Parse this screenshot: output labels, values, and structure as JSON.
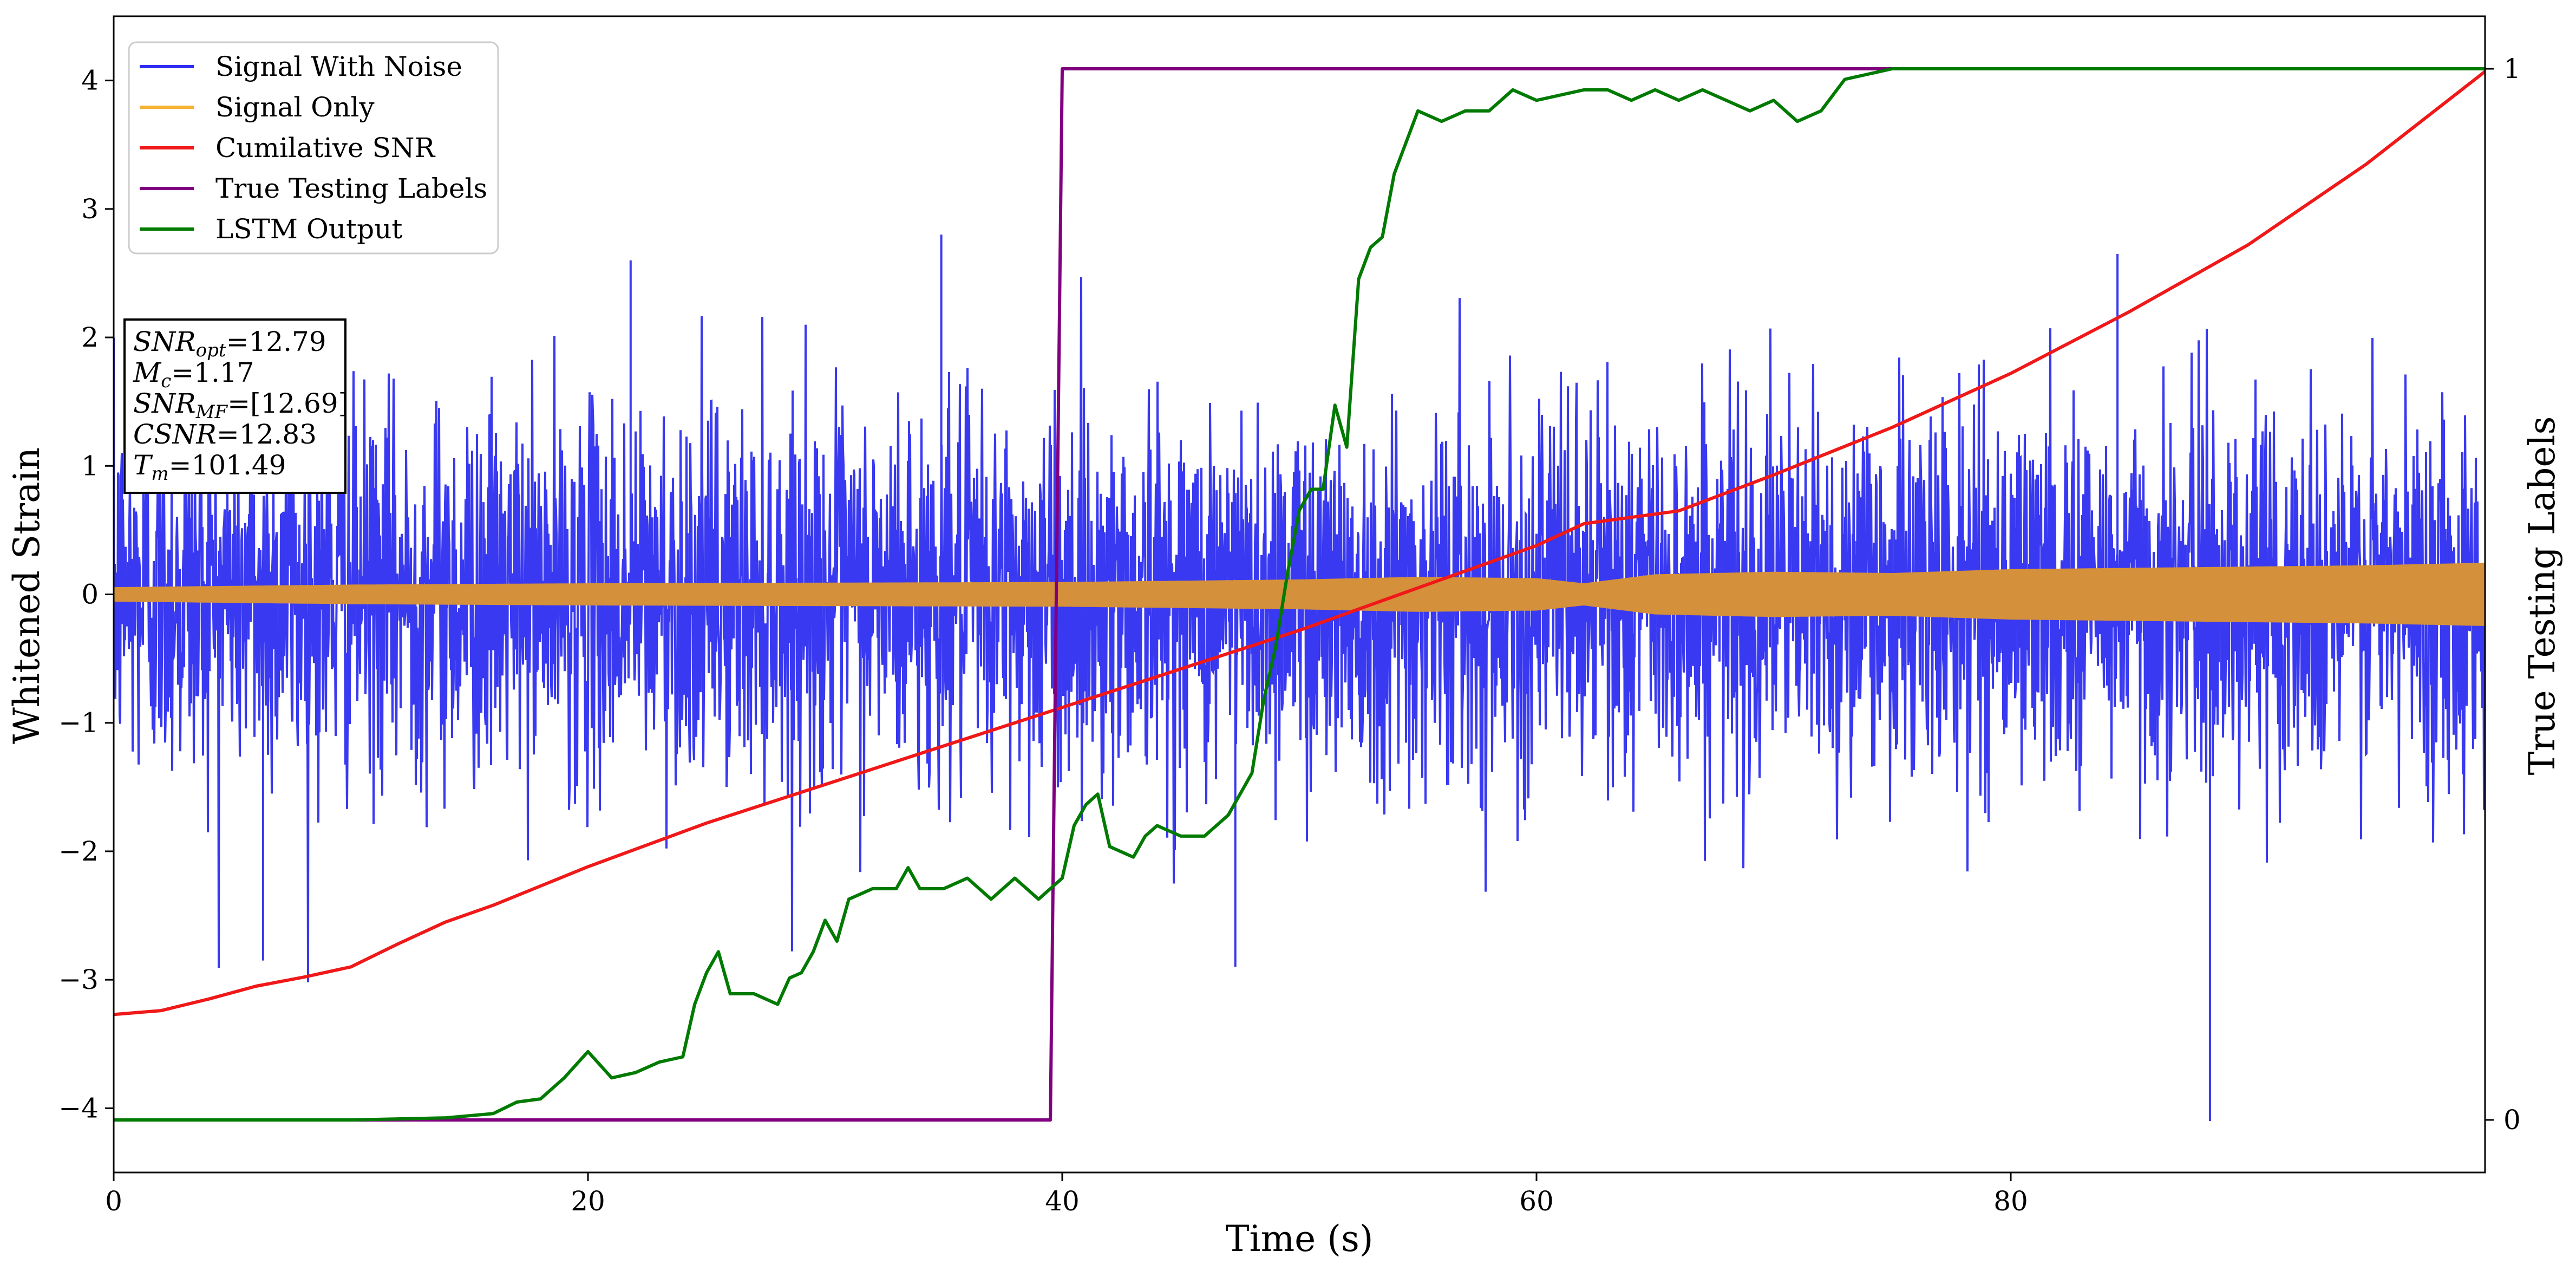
{
  "chart_data": {
    "type": "line",
    "title": "",
    "xlabel": "Time (s)",
    "ylabel": "Whitened Strain",
    "ylabel_right": "True Testing Labels",
    "xlim": [
      0,
      100
    ],
    "ylim": [
      -4.5,
      4.5
    ],
    "ylim_right": [
      -0.05,
      1.05
    ],
    "x_ticks": [
      0,
      20,
      40,
      60,
      80
    ],
    "x_tick_labels": [
      "0",
      "20",
      "40",
      "60",
      "80"
    ],
    "y_ticks": [
      -4,
      -3,
      -2,
      -1,
      0,
      1,
      2,
      3,
      4
    ],
    "y_tick_labels": [
      "−4",
      "−3",
      "−2",
      "−1",
      "0",
      "1",
      "2",
      "3",
      "4"
    ],
    "y_right_ticks": [
      0,
      1
    ],
    "y_right_tick_labels": [
      "0",
      "1"
    ],
    "grid": false,
    "legend_position": "top-left",
    "legend": [
      {
        "label": "Signal With Noise",
        "color": "#2e2ef0"
      },
      {
        "label": "Signal Only",
        "color": "#f5b233"
      },
      {
        "label": "Cumilative SNR",
        "color": "#f01818"
      },
      {
        "label": "True Testing Labels",
        "color": "#800080"
      },
      {
        "label": "LSTM Output",
        "color": "#007a00"
      }
    ],
    "info_box": [
      {
        "main": "SNR",
        "sub": "opt",
        "value": "=12.79"
      },
      {
        "main": "M",
        "sub": "c",
        "value": "=1.17"
      },
      {
        "main": "SNR",
        "sub": "MF",
        "value": "=[12.69]"
      },
      {
        "main": "CSNR",
        "sub": "",
        "value": "=12.83"
      },
      {
        "main": "T",
        "sub": "m",
        "value": "=101.49"
      }
    ],
    "series": [
      {
        "name": "Signal With Noise",
        "axis": "left",
        "color": "#2e2ef0",
        "kind": "noise_band",
        "x": [
          0,
          100
        ],
        "mean": 0.0,
        "std": 0.72,
        "notable_extremes": [
          {
            "x": 88.4,
            "y": -4.1
          },
          {
            "x": 34.9,
            "y": 2.8
          },
          {
            "x": 21.8,
            "y": 2.6
          },
          {
            "x": 84.5,
            "y": 2.65
          },
          {
            "x": 6.3,
            "y": -2.85
          },
          {
            "x": 47.3,
            "y": -2.9
          }
        ]
      },
      {
        "name": "Signal Only",
        "axis": "left",
        "color": "#d4903a",
        "kind": "envelope",
        "x": [
          0,
          10,
          20,
          30,
          40,
          50,
          55,
          60,
          62,
          65,
          70,
          75,
          80,
          85,
          90,
          95,
          100
        ],
        "amplitude": [
          0.05,
          0.07,
          0.08,
          0.085,
          0.09,
          0.11,
          0.13,
          0.12,
          0.08,
          0.15,
          0.17,
          0.16,
          0.19,
          0.2,
          0.21,
          0.22,
          0.24
        ]
      },
      {
        "name": "Cumilative SNR",
        "axis": "left",
        "color": "#f01818",
        "x": [
          0,
          2,
          4,
          6,
          8,
          10,
          12,
          14,
          16,
          20,
          25,
          30,
          35,
          40,
          45,
          50,
          55,
          60,
          62,
          64,
          66,
          70,
          75,
          80,
          85,
          90,
          95,
          100
        ],
        "y": [
          -3.27,
          -3.24,
          -3.15,
          -3.05,
          -2.98,
          -2.9,
          -2.72,
          -2.55,
          -2.42,
          -2.12,
          -1.78,
          -1.48,
          -1.18,
          -0.88,
          -0.58,
          -0.28,
          0.05,
          0.38,
          0.55,
          0.6,
          0.65,
          0.93,
          1.3,
          1.72,
          2.2,
          2.72,
          3.35,
          4.07
        ]
      },
      {
        "name": "True Testing Labels",
        "axis": "right",
        "color": "#800080",
        "x": [
          0,
          39.5,
          40.0,
          100
        ],
        "y": [
          0,
          0,
          1,
          1
        ]
      },
      {
        "name": "LSTM Output",
        "axis": "right",
        "color": "#007a00",
        "x": [
          0,
          10,
          14,
          16,
          17,
          18,
          19,
          20,
          21,
          22,
          23,
          24,
          24.5,
          25,
          25.5,
          26,
          27,
          28,
          28.5,
          29,
          29.5,
          30,
          30.5,
          31,
          32,
          33,
          33.5,
          34,
          35,
          36,
          37,
          38,
          39,
          40,
          40.5,
          41,
          41.5,
          42,
          43,
          43.5,
          44,
          45,
          46,
          47,
          48,
          48.5,
          49,
          49.5,
          50,
          50.5,
          51,
          51.5,
          52,
          52.5,
          53,
          53.5,
          54,
          55,
          56,
          57,
          58,
          59,
          60,
          62,
          63,
          64,
          65,
          66,
          67,
          68,
          69,
          70,
          71,
          72,
          73,
          75,
          78,
          80,
          82,
          100
        ],
        "y": [
          0,
          0,
          0.002,
          0.006,
          0.017,
          0.02,
          0.04,
          0.065,
          0.04,
          0.045,
          0.055,
          0.06,
          0.11,
          0.14,
          0.16,
          0.12,
          0.12,
          0.11,
          0.135,
          0.14,
          0.16,
          0.19,
          0.17,
          0.21,
          0.22,
          0.22,
          0.24,
          0.22,
          0.22,
          0.23,
          0.21,
          0.23,
          0.21,
          0.23,
          0.28,
          0.3,
          0.31,
          0.26,
          0.25,
          0.27,
          0.28,
          0.27,
          0.27,
          0.29,
          0.33,
          0.4,
          0.45,
          0.52,
          0.58,
          0.6,
          0.6,
          0.68,
          0.64,
          0.8,
          0.83,
          0.84,
          0.9,
          0.96,
          0.95,
          0.96,
          0.96,
          0.98,
          0.97,
          0.98,
          0.98,
          0.97,
          0.98,
          0.97,
          0.98,
          0.97,
          0.96,
          0.97,
          0.95,
          0.96,
          0.99,
          1.0,
          1.0,
          1.0,
          1.0,
          1.0
        ]
      }
    ]
  }
}
